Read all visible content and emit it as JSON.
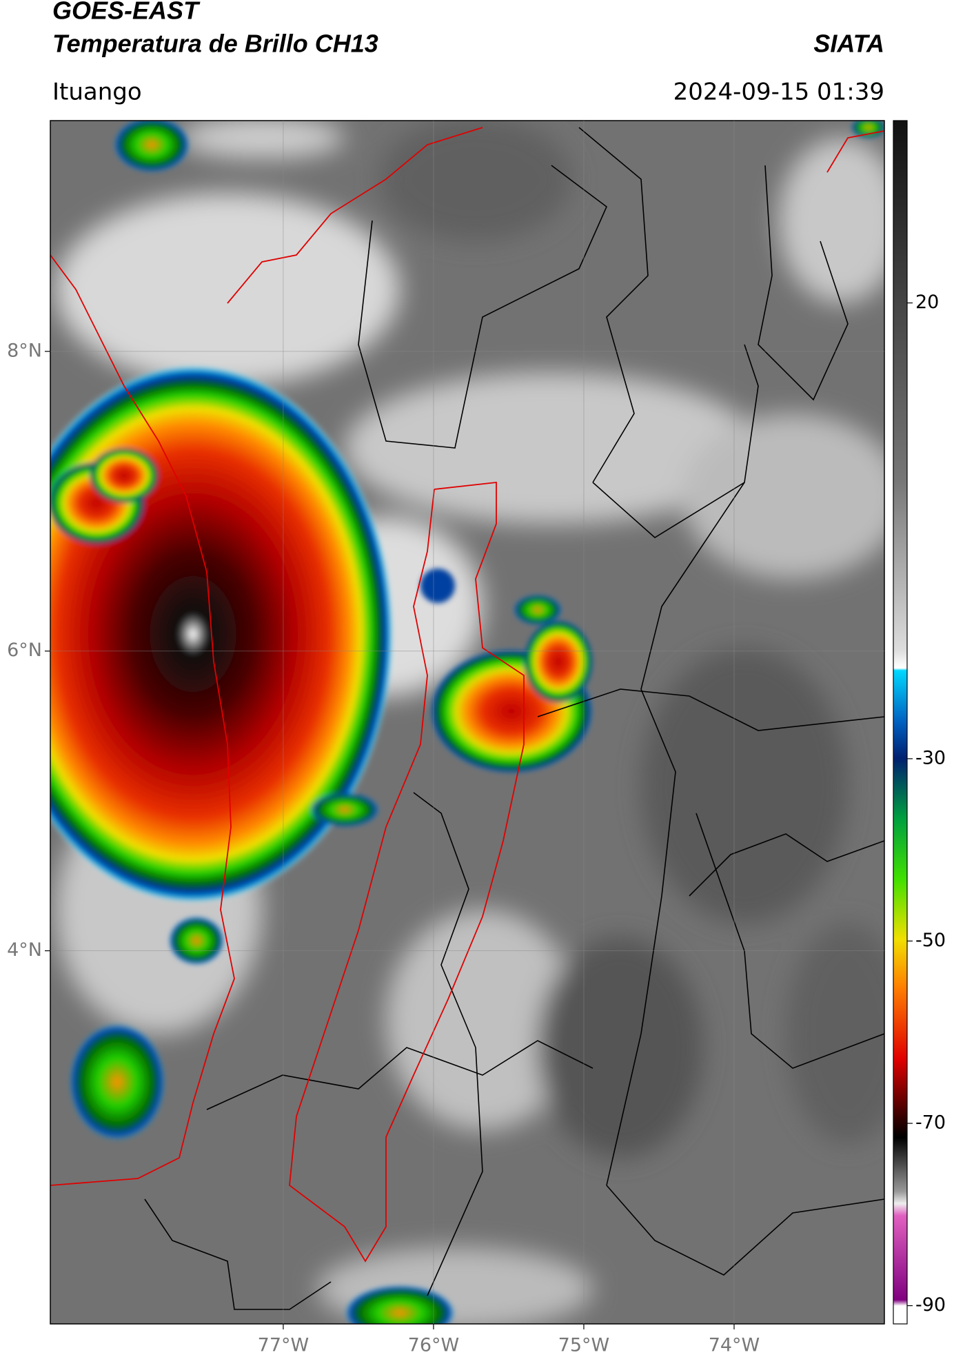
{
  "header": {
    "title_line1": "GOES-EAST",
    "title_line2": "Temperatura de Brillo CH13",
    "source": "SIATA",
    "location": "Ituango",
    "datetime": "2024-09-15 01:39"
  },
  "map": {
    "xlim": [
      -78.55,
      -73.0
    ],
    "ylim": [
      1.51,
      9.54
    ],
    "lat_ticks": [
      {
        "value": 8,
        "label": "8°N"
      },
      {
        "value": 6,
        "label": "6°N"
      },
      {
        "value": 4,
        "label": "4°N"
      }
    ],
    "lon_ticks": [
      {
        "value": -77,
        "label": "77°W"
      },
      {
        "value": -76,
        "label": "76°W"
      },
      {
        "value": -75,
        "label": "75°W"
      },
      {
        "value": -74,
        "label": "74°W"
      }
    ]
  },
  "colorbar": {
    "lim": [
      -92,
      40
    ],
    "ticks": [
      20,
      -30,
      -50,
      -70,
      -90
    ]
  }
}
